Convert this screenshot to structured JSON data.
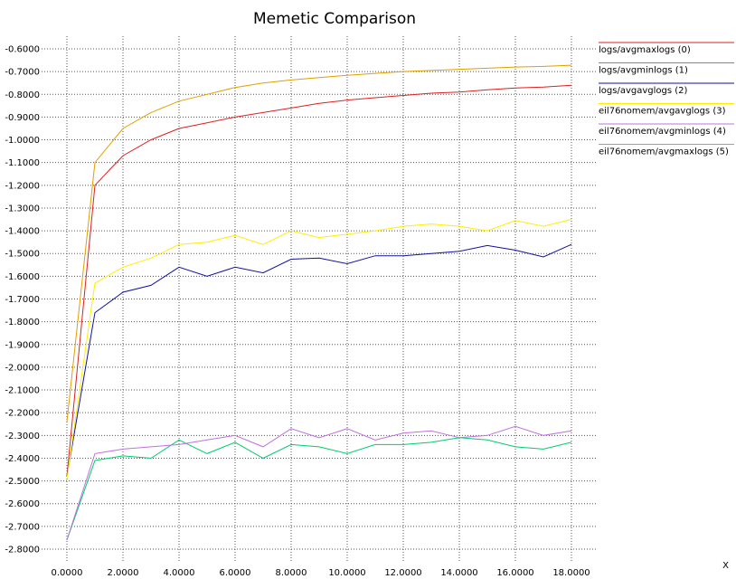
{
  "chart_data": {
    "type": "line",
    "title": "Memetic Comparison",
    "xlabel": "X",
    "ylabel": "",
    "xlim": [
      0,
      18
    ],
    "ylim": [
      -2.8,
      -0.6
    ],
    "x_ticks": [
      "0.0000",
      "2.0000",
      "4.0000",
      "6.0000",
      "8.0000",
      "10.0000",
      "12.0000",
      "14.0000",
      "16.0000",
      "18.0000"
    ],
    "x_tick_values": [
      0,
      2,
      4,
      6,
      8,
      10,
      12,
      14,
      16,
      18
    ],
    "y_ticks": [
      "-0.6000",
      "-0.7000",
      "-0.8000",
      "-0.9000",
      "-1.0000",
      "-1.1000",
      "-1.2000",
      "-1.3000",
      "-1.4000",
      "-1.5000",
      "-1.6000",
      "-1.7000",
      "-1.8000",
      "-1.9000",
      "-2.0000",
      "-2.1000",
      "-2.2000",
      "-2.3000",
      "-2.4000",
      "-2.5000",
      "-2.6000",
      "-2.7000",
      "-2.8000"
    ],
    "y_tick_values": [
      -0.6,
      -0.7,
      -0.8,
      -0.9,
      -1.0,
      -1.1,
      -1.2,
      -1.3,
      -1.4,
      -1.5,
      -1.6,
      -1.7,
      -1.8,
      -1.9,
      -2.0,
      -2.1,
      -2.2,
      -2.3,
      -2.4,
      -2.5,
      -2.6,
      -2.7,
      -2.8
    ],
    "grid": true,
    "legend_position": "right-top",
    "x": [
      0,
      1,
      2,
      3,
      4,
      5,
      6,
      7,
      8,
      9,
      10,
      11,
      12,
      13,
      14,
      15,
      16,
      17,
      18
    ],
    "series": [
      {
        "name": "logs/avgmaxlogs (0)",
        "color": "#dd2020",
        "values": [
          -2.48,
          -1.2,
          -1.07,
          -1.0,
          -0.95,
          -0.925,
          -0.9,
          -0.88,
          -0.86,
          -0.84,
          -0.825,
          -0.815,
          -0.805,
          -0.795,
          -0.79,
          -0.78,
          -0.772,
          -0.768,
          -0.76
        ]
      },
      {
        "name": "logs/avgminlogs (1)",
        "color": "#00cc70",
        "values": [
          -2.76,
          -2.41,
          -2.39,
          -2.4,
          -2.32,
          -2.38,
          -2.33,
          -2.4,
          -2.34,
          -2.35,
          -2.38,
          -2.34,
          -2.34,
          -2.33,
          -2.31,
          -2.32,
          -2.35,
          -2.36,
          -2.33
        ]
      },
      {
        "name": "logs/avgavglogs (2)",
        "color": "#1010a0",
        "values": [
          -2.48,
          -1.76,
          -1.67,
          -1.64,
          -1.56,
          -1.6,
          -1.56,
          -1.585,
          -1.525,
          -1.52,
          -1.545,
          -1.51,
          -1.51,
          -1.5,
          -1.49,
          -1.465,
          -1.485,
          -1.515,
          -1.46
        ]
      },
      {
        "name": "eil76nomem/avgavglogs (3)",
        "color": "#ffee00",
        "values": [
          -2.49,
          -1.63,
          -1.56,
          -1.52,
          -1.46,
          -1.45,
          -1.42,
          -1.46,
          -1.4,
          -1.43,
          -1.415,
          -1.4,
          -1.38,
          -1.37,
          -1.38,
          -1.4,
          -1.355,
          -1.38,
          -1.35
        ]
      },
      {
        "name": "eil76nomem/avgminlogs (4)",
        "color": "#c070e0",
        "values": [
          -2.76,
          -2.38,
          -2.36,
          -2.35,
          -2.34,
          -2.32,
          -2.3,
          -2.35,
          -2.27,
          -2.31,
          -2.27,
          -2.32,
          -2.29,
          -2.28,
          -2.31,
          -2.3,
          -2.26,
          -2.3,
          -2.28
        ]
      },
      {
        "name": "eil76nomem/avgmaxlogs (5)",
        "color": "#e0a000",
        "values": [
          -2.24,
          -1.1,
          -0.95,
          -0.88,
          -0.83,
          -0.8,
          -0.77,
          -0.75,
          -0.737,
          -0.726,
          -0.716,
          -0.708,
          -0.7,
          -0.695,
          -0.69,
          -0.685,
          -0.68,
          -0.677,
          -0.672
        ]
      }
    ]
  }
}
